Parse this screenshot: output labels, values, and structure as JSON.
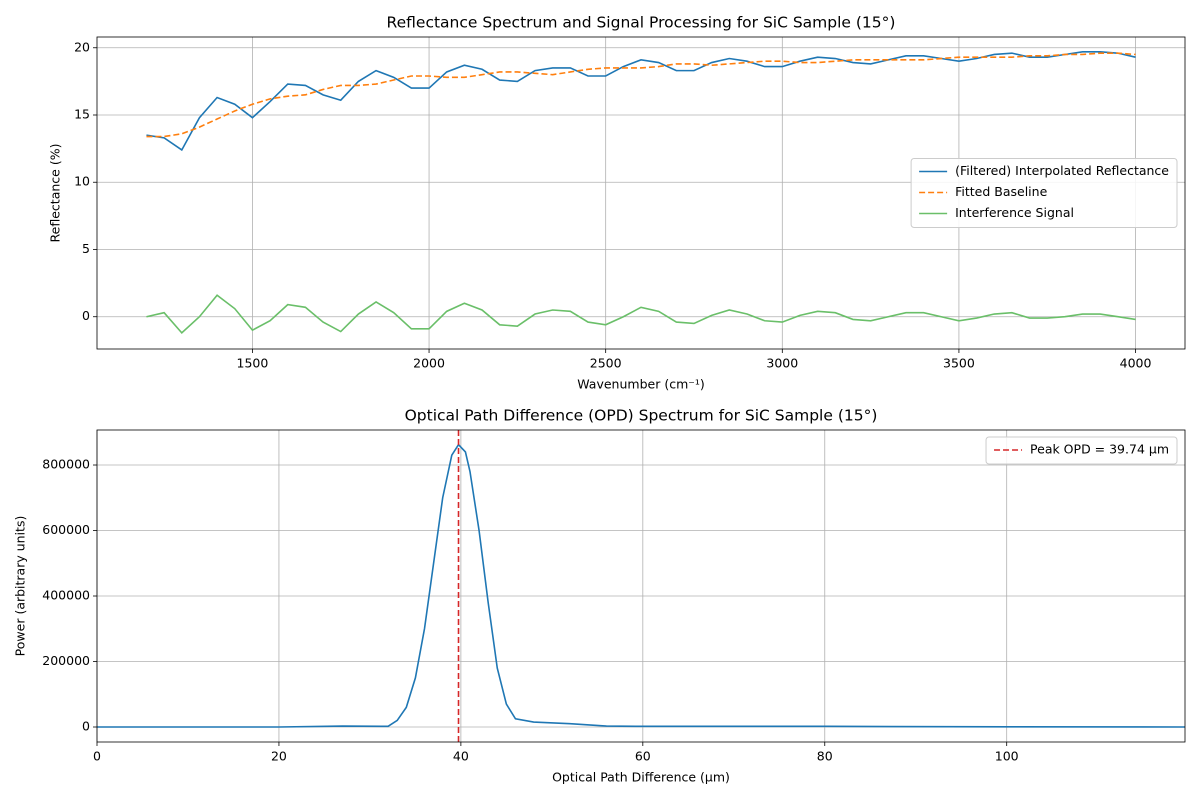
{
  "chart_data": [
    {
      "type": "line",
      "title": "Reflectance Spectrum and Signal Processing for SiC Sample (15°)",
      "x_label": "Wavenumber (cm⁻¹)",
      "y_label": "Reflectance (%)",
      "x": [
        1200,
        1250,
        1300,
        1350,
        1400,
        1450,
        1500,
        1550,
        1600,
        1650,
        1700,
        1750,
        1800,
        1850,
        1900,
        1950,
        2000,
        2050,
        2100,
        2150,
        2200,
        2250,
        2300,
        2350,
        2400,
        2450,
        2500,
        2550,
        2600,
        2650,
        2700,
        2750,
        2800,
        2850,
        2900,
        2950,
        3000,
        3050,
        3100,
        3150,
        3200,
        3250,
        3300,
        3350,
        3400,
        3450,
        3500,
        3550,
        3600,
        3650,
        3700,
        3750,
        3800,
        3850,
        3900,
        3950,
        4000
      ],
      "series": [
        {
          "name": "(Filtered) Interpolated Reflectance",
          "color": "#1f77b4",
          "values": [
            13.5,
            13.3,
            12.4,
            14.8,
            16.3,
            15.8,
            14.8,
            16.0,
            17.3,
            17.2,
            16.5,
            16.1,
            17.5,
            18.3,
            17.8,
            17.0,
            17.0,
            18.2,
            18.7,
            18.4,
            17.6,
            17.5,
            18.3,
            18.5,
            18.5,
            17.9,
            17.9,
            18.6,
            19.1,
            18.9,
            18.3,
            18.3,
            18.9,
            19.2,
            19.0,
            18.6,
            18.6,
            19.0,
            19.3,
            19.2,
            18.9,
            18.8,
            19.1,
            19.4,
            19.4,
            19.2,
            19.0,
            19.2,
            19.5,
            19.6,
            19.3,
            19.3,
            19.5,
            19.7,
            19.7,
            19.6,
            19.3
          ]
        },
        {
          "name": "Fitted Baseline",
          "color": "#ff7f0e",
          "dashed": true,
          "values": [
            13.4,
            13.4,
            13.6,
            14.1,
            14.7,
            15.3,
            15.8,
            16.2,
            16.4,
            16.5,
            16.9,
            17.2,
            17.2,
            17.3,
            17.6,
            17.9,
            17.9,
            17.8,
            17.8,
            18.0,
            18.2,
            18.2,
            18.1,
            18.0,
            18.2,
            18.4,
            18.5,
            18.5,
            18.5,
            18.6,
            18.8,
            18.8,
            18.7,
            18.8,
            18.9,
            19.0,
            19.0,
            18.9,
            18.9,
            19.0,
            19.1,
            19.1,
            19.1,
            19.1,
            19.1,
            19.2,
            19.3,
            19.3,
            19.3,
            19.3,
            19.4,
            19.4,
            19.5,
            19.5,
            19.6,
            19.6,
            19.5
          ]
        },
        {
          "name": "Interference Signal",
          "color": "#6abf69",
          "values": [
            0.0,
            0.3,
            -1.2,
            0.0,
            1.6,
            0.6,
            -1.0,
            -0.3,
            0.9,
            0.7,
            -0.4,
            -1.1,
            0.2,
            1.1,
            0.3,
            -0.9,
            -0.9,
            0.4,
            1.0,
            0.5,
            -0.6,
            -0.7,
            0.2,
            0.5,
            0.4,
            -0.4,
            -0.6,
            0.0,
            0.7,
            0.4,
            -0.4,
            -0.5,
            0.1,
            0.5,
            0.2,
            -0.3,
            -0.4,
            0.1,
            0.4,
            0.3,
            -0.2,
            -0.3,
            0.0,
            0.3,
            0.3,
            0.0,
            -0.3,
            -0.1,
            0.2,
            0.3,
            -0.1,
            -0.1,
            0.0,
            0.2,
            0.2,
            0.0,
            -0.2
          ]
        }
      ],
      "xlim": [
        1060,
        4140
      ],
      "xticks": [
        1500,
        2000,
        2500,
        3000,
        3500,
        4000
      ],
      "ylim": [
        -2.4,
        20.8
      ],
      "yticks": [
        0,
        5,
        10,
        15,
        20
      ],
      "grid": true,
      "legend": "center right"
    },
    {
      "type": "line",
      "title": "Optical Path Difference (OPD) Spectrum for SiC Sample (15°)",
      "x_label": "Optical Path Difference (µm)",
      "y_label": "Power (arbitrary units)",
      "x": [
        0,
        20,
        27,
        32,
        33,
        34,
        35,
        36,
        37,
        38,
        39,
        39.74,
        40.5,
        41,
        42,
        43,
        44,
        45,
        46,
        48,
        52,
        56,
        60,
        80,
        100,
        119.6
      ],
      "series": [
        {
          "color": "#1f77b4",
          "values": [
            0,
            0,
            3000,
            2000,
            20000,
            60000,
            150000,
            300000,
            500000,
            700000,
            830000,
            862000,
            840000,
            780000,
            600000,
            380000,
            180000,
            70000,
            25000,
            15000,
            10000,
            3000,
            2000,
            2000,
            500,
            0
          ]
        }
      ],
      "vline": {
        "value": 39.74,
        "label": "Peak OPD = 39.74 µm",
        "color": "#d62728"
      },
      "xlim": [
        0,
        119.6
      ],
      "xticks": [
        0,
        20,
        40,
        60,
        80,
        100
      ],
      "ylim": [
        -45800,
        906900
      ],
      "yticks": [
        0,
        200000,
        400000,
        600000,
        800000
      ],
      "grid": true,
      "legend": "upper right"
    }
  ]
}
